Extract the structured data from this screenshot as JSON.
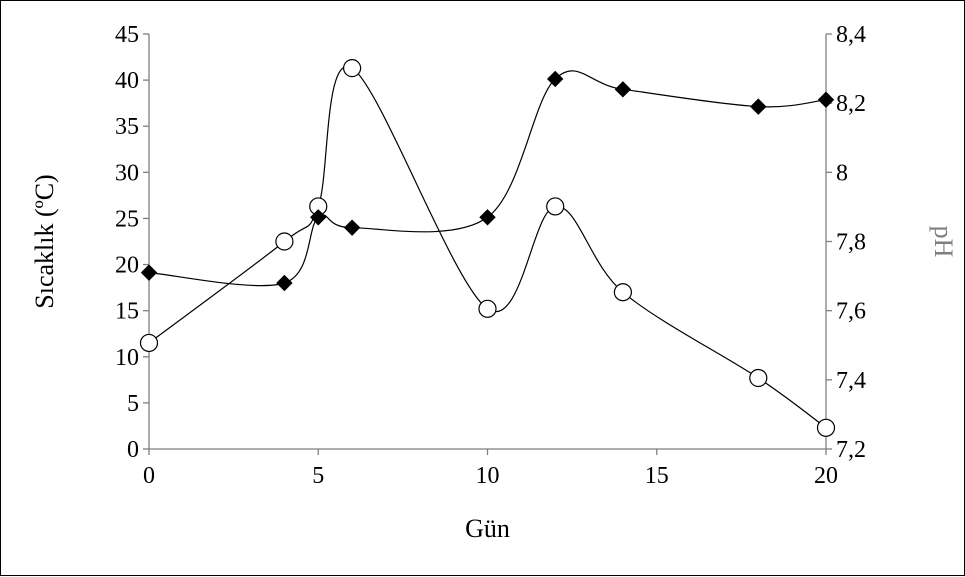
{
  "chart_data": {
    "type": "line",
    "xlabel": "Gün",
    "ylabel": "Sıcaklık (ºC)",
    "y2label": "pH",
    "xlim": [
      0,
      20
    ],
    "ylim": [
      0,
      45
    ],
    "y2lim": [
      7.2,
      8.4
    ],
    "x_ticks": [
      "0",
      "5",
      "10",
      "15",
      "20"
    ],
    "y_ticks": [
      "0",
      "5",
      "10",
      "15",
      "20",
      "25",
      "30",
      "35",
      "40",
      "45"
    ],
    "y2_ticks": [
      "7,2",
      "7,4",
      "7,6",
      "7,8",
      "8",
      "8,2",
      "8,4"
    ],
    "grid": false,
    "series": [
      {
        "axis": "left",
        "marker": "circle-open",
        "smooth": true,
        "x": [
          0,
          4,
          5,
          6,
          10,
          12,
          14,
          18,
          20
        ],
        "values": [
          11.5,
          22.5,
          26.3,
          41.3,
          15.2,
          26.3,
          17.0,
          7.7,
          2.3
        ]
      },
      {
        "axis": "right",
        "marker": "diamond-filled",
        "smooth": true,
        "x": [
          0,
          4,
          5,
          6,
          10,
          12,
          14,
          18,
          20
        ],
        "values": [
          7.71,
          7.68,
          7.87,
          7.84,
          7.87,
          8.27,
          8.24,
          8.19,
          8.21
        ]
      }
    ]
  }
}
